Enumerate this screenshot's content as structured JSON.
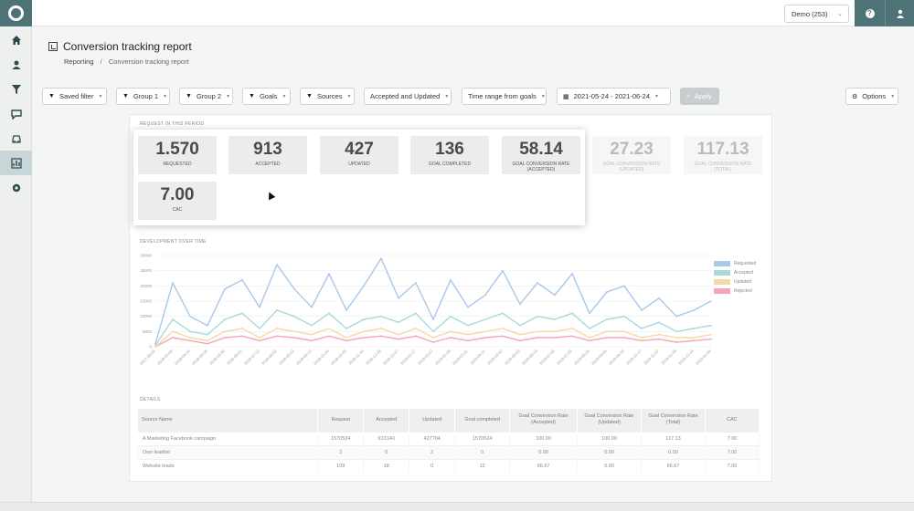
{
  "topbar": {
    "account_select": "Demo (253)",
    "help_label": "?"
  },
  "sidebar": {
    "items": [
      {
        "icon": "home-icon"
      },
      {
        "icon": "contacts-icon"
      },
      {
        "icon": "filter-icon"
      },
      {
        "icon": "chat-icon"
      },
      {
        "icon": "car-icon"
      },
      {
        "icon": "report-icon",
        "active": true
      },
      {
        "icon": "gear-icon"
      }
    ]
  },
  "header": {
    "title": "Conversion tracking report",
    "breadcrumb": {
      "parent": "Reporting",
      "separator": "/",
      "current": "Conversion tracking report"
    }
  },
  "filters": {
    "saved_filter": "Saved filter",
    "group1": "Group 1",
    "group2": "Group 2",
    "goals": "Goals",
    "sources": "Sources",
    "status": "Accepted and Updated",
    "time_range": "Time range from goals",
    "date_range": "2021-05-24 - 2021-06-24",
    "apply": "Apply",
    "options": "Options"
  },
  "sections": {
    "requests": "REQUEST IN THIS PERIOD",
    "development": "DEVELOPMENT OVER TIME",
    "details": "DETAILS"
  },
  "kpis": [
    {
      "value": "1.570",
      "label": "REQUESTED"
    },
    {
      "value": "913",
      "label": "ACCEPTED"
    },
    {
      "value": "427",
      "label": "UPDATED"
    },
    {
      "value": "136",
      "label": "GOAL COMPLETED"
    },
    {
      "value": "58.14",
      "label": "GOAL CONVERSION RATE (ACCEPTED)"
    },
    {
      "value": "27.23",
      "label": "GOAL CONVERSION RATE (UPDATED)"
    },
    {
      "value": "117.13",
      "label": "GOAL CONVERSION RATE (TOTAL)"
    },
    {
      "value": "7.00",
      "label": "CAC"
    }
  ],
  "chart_data": {
    "type": "line",
    "ylim": [
      0,
      30000
    ],
    "yticks": [
      "30000",
      "25000",
      "20000",
      "15000",
      "10000",
      "5000",
      "0"
    ],
    "x": [
      "2017-08-25",
      "2018-03-09",
      "2018-04-14",
      "2018-05-09",
      "2018-05-30",
      "2018-06-21",
      "2018-07-12",
      "2018-08-02",
      "2018-08-23",
      "2018-09-13",
      "2018-10-04",
      "2018-10-25",
      "2018-11-15",
      "2018-12-06",
      "2018-12-27",
      "2019-01-17",
      "2019-02-07",
      "2019-02-28",
      "2019-03-21",
      "2019-04-11",
      "2019-05-02",
      "2019-05-23",
      "2019-06-13",
      "2019-07-04",
      "2019-07-25",
      "2019-08-15",
      "2019-09-05",
      "2019-09-26",
      "2019-10-17",
      "2019-11-07",
      "2019-11-28",
      "2019-12-19",
      "2020-01-09"
    ],
    "series": [
      {
        "name": "Requested",
        "color": "#a9c8ec",
        "values": [
          1000,
          21000,
          10000,
          7000,
          19000,
          22000,
          13000,
          27000,
          19000,
          13000,
          24000,
          12000,
          20000,
          29000,
          16000,
          21000,
          9000,
          22000,
          13000,
          17000,
          25000,
          14000,
          21000,
          17000,
          24000,
          11000,
          18000,
          20000,
          12000,
          16000,
          10000,
          12000,
          15000
        ]
      },
      {
        "name": "Accepted",
        "color": "#a8dbd6",
        "values": [
          500,
          9000,
          5000,
          4000,
          9000,
          11000,
          6000,
          12000,
          10000,
          7000,
          11000,
          6000,
          9000,
          10000,
          8000,
          11000,
          5000,
          10000,
          7000,
          9000,
          11000,
          7000,
          10000,
          9000,
          11000,
          6000,
          9000,
          10000,
          6000,
          8000,
          5000,
          6000,
          7000
        ]
      },
      {
        "name": "Updated",
        "color": "#f6d9a6",
        "values": [
          0,
          5000,
          3000,
          2000,
          5000,
          6000,
          3000,
          6000,
          5000,
          4000,
          6000,
          3000,
          5000,
          6000,
          4000,
          6000,
          3000,
          5000,
          4000,
          5000,
          6000,
          4000,
          5000,
          5000,
          6000,
          3000,
          5000,
          5000,
          3000,
          4000,
          3000,
          3000,
          4000
        ]
      },
      {
        "name": "Rejected",
        "color": "#f5a5b4",
        "values": [
          0,
          3000,
          2000,
          1000,
          3000,
          3500,
          2000,
          3500,
          3000,
          2000,
          3500,
          2000,
          3000,
          3500,
          2500,
          3500,
          1500,
          3000,
          2000,
          3000,
          3500,
          2000,
          3000,
          3000,
          3500,
          2000,
          3000,
          3000,
          2000,
          2500,
          1500,
          2000,
          2500
        ]
      }
    ]
  },
  "table": {
    "headers": [
      "Source Name",
      "Request",
      "Accepted",
      "Updated",
      "Goal completed",
      "Goal Conversion Rate (Accepted)",
      "Goal Conversion Rate (Updated)",
      "Goal Conversion Rate (Total)",
      "CAC"
    ],
    "rows": [
      [
        "A Marketing Facebook campaign",
        "1570524",
        "913140",
        "427704",
        "1570524",
        "100.00",
        "100.00",
        "117.13",
        "7.00"
      ],
      [
        "Own leadlist",
        "2",
        "0",
        "2",
        "0",
        "0.00",
        "0.00",
        "0.00",
        "7.00"
      ],
      [
        "Website leads",
        "109",
        "18",
        "0",
        "12",
        "66.67",
        "0.00",
        "66.67",
        "7.00"
      ]
    ]
  }
}
